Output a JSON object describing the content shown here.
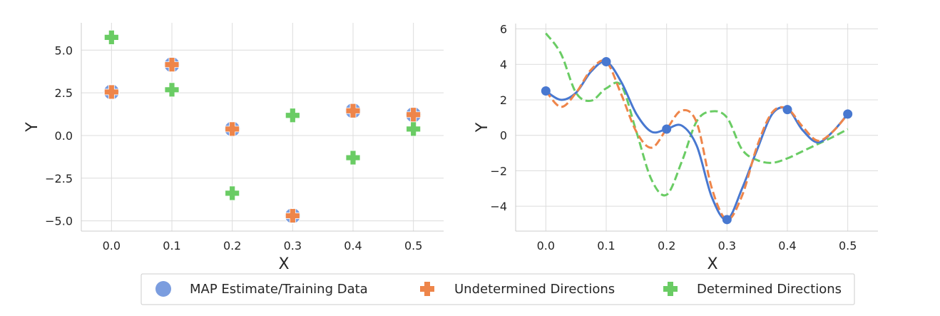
{
  "legend": {
    "placement": "bottom-center",
    "entries": [
      {
        "label": "MAP Estimate/Training Data",
        "marker": "circle",
        "color": "#7b9ddf"
      },
      {
        "label": "Undetermined Directions",
        "marker": "plus",
        "color": "#ee854a"
      },
      {
        "label": "Determined Directions",
        "marker": "plus",
        "color": "#6acc64"
      }
    ]
  },
  "chart_data": [
    {
      "type": "scatter",
      "title": "",
      "xlabel": "X",
      "ylabel": "Y",
      "xlim": [
        -0.05,
        0.55
      ],
      "ylim": [
        -5.6,
        6.6
      ],
      "xticks": [
        0.0,
        0.1,
        0.2,
        0.3,
        0.4,
        0.5
      ],
      "xtick_labels": [
        "0.0",
        "0.1",
        "0.2",
        "0.3",
        "0.4",
        "0.5"
      ],
      "yticks": [
        -5.0,
        -2.5,
        0.0,
        2.5,
        5.0
      ],
      "ytick_labels": [
        "−5.0",
        "−2.5",
        "0.0",
        "2.5",
        "5.0"
      ],
      "grid": true,
      "series": [
        {
          "name": "MAP Estimate/Training Data",
          "marker": "circle",
          "color": "#7b9ddf",
          "x": [
            0.0,
            0.1,
            0.2,
            0.3,
            0.4,
            0.5
          ],
          "y": [
            2.55,
            4.15,
            0.38,
            -4.7,
            1.45,
            1.22
          ]
        },
        {
          "name": "Undetermined Directions",
          "marker": "plus",
          "color": "#ee854a",
          "x": [
            0.0,
            0.1,
            0.2,
            0.3,
            0.4,
            0.5
          ],
          "y": [
            2.55,
            4.15,
            0.38,
            -4.7,
            1.45,
            1.22
          ]
        },
        {
          "name": "Determined Directions",
          "marker": "plus",
          "color": "#6acc64",
          "x": [
            0.0,
            0.1,
            0.2,
            0.3,
            0.4,
            0.5
          ],
          "y": [
            5.75,
            2.68,
            -3.38,
            1.18,
            -1.3,
            0.38
          ]
        }
      ]
    },
    {
      "type": "line",
      "title": "",
      "xlabel": "X",
      "ylabel": "Y",
      "xlim": [
        -0.05,
        0.55
      ],
      "ylim": [
        -5.4,
        6.3
      ],
      "xticks": [
        0.0,
        0.1,
        0.2,
        0.3,
        0.4,
        0.5
      ],
      "xtick_labels": [
        "0.0",
        "0.1",
        "0.2",
        "0.3",
        "0.4",
        "0.5"
      ],
      "yticks": [
        -4,
        -2,
        0,
        2,
        4,
        6
      ],
      "ytick_labels": [
        "−4",
        "−2",
        "0",
        "2",
        "4",
        "6"
      ],
      "grid": true,
      "series": [
        {
          "name": "MAP Estimate/Training Data",
          "style": "solid",
          "color": "#4878d0",
          "x": [
            0.0,
            0.025,
            0.05,
            0.075,
            0.1,
            0.125,
            0.15,
            0.175,
            0.2,
            0.225,
            0.25,
            0.275,
            0.3,
            0.325,
            0.35,
            0.375,
            0.4,
            0.425,
            0.45,
            0.475,
            0.5
          ],
          "y": [
            2.5,
            2.0,
            2.4,
            3.6,
            4.15,
            3.0,
            1.2,
            0.2,
            0.35,
            0.55,
            -0.6,
            -3.5,
            -4.75,
            -3.0,
            -0.8,
            1.2,
            1.5,
            0.3,
            -0.4,
            0.2,
            1.2
          ]
        },
        {
          "name": "Undetermined Directions",
          "style": "dashed",
          "color": "#ee854a",
          "x": [
            0.0,
            0.025,
            0.05,
            0.075,
            0.1,
            0.125,
            0.15,
            0.175,
            0.2,
            0.225,
            0.25,
            0.275,
            0.3,
            0.325,
            0.35,
            0.375,
            0.4,
            0.425,
            0.45,
            0.475,
            0.5
          ],
          "y": [
            2.5,
            1.6,
            2.4,
            3.7,
            4.15,
            2.3,
            0.2,
            -0.7,
            0.35,
            1.4,
            0.7,
            -3.0,
            -4.75,
            -3.4,
            -0.6,
            1.3,
            1.5,
            0.5,
            -0.3,
            0.2,
            1.2
          ]
        },
        {
          "name": "Determined Directions",
          "style": "dashed",
          "color": "#6acc64",
          "x": [
            0.0,
            0.025,
            0.05,
            0.075,
            0.1,
            0.125,
            0.15,
            0.175,
            0.2,
            0.225,
            0.25,
            0.275,
            0.3,
            0.325,
            0.35,
            0.375,
            0.4,
            0.425,
            0.45,
            0.475,
            0.5
          ],
          "y": [
            5.75,
            4.6,
            2.4,
            1.95,
            2.65,
            2.8,
            0.2,
            -2.5,
            -3.35,
            -1.5,
            0.8,
            1.35,
            1.0,
            -0.8,
            -1.4,
            -1.55,
            -1.3,
            -0.9,
            -0.5,
            -0.1,
            0.35
          ]
        },
        {
          "name": "MAP Estimate/Training Data",
          "style": "points",
          "color": "#4878d0",
          "x": [
            0.0,
            0.1,
            0.2,
            0.3,
            0.4,
            0.5
          ],
          "y": [
            2.5,
            4.15,
            0.35,
            -4.75,
            1.45,
            1.2
          ]
        }
      ]
    }
  ]
}
